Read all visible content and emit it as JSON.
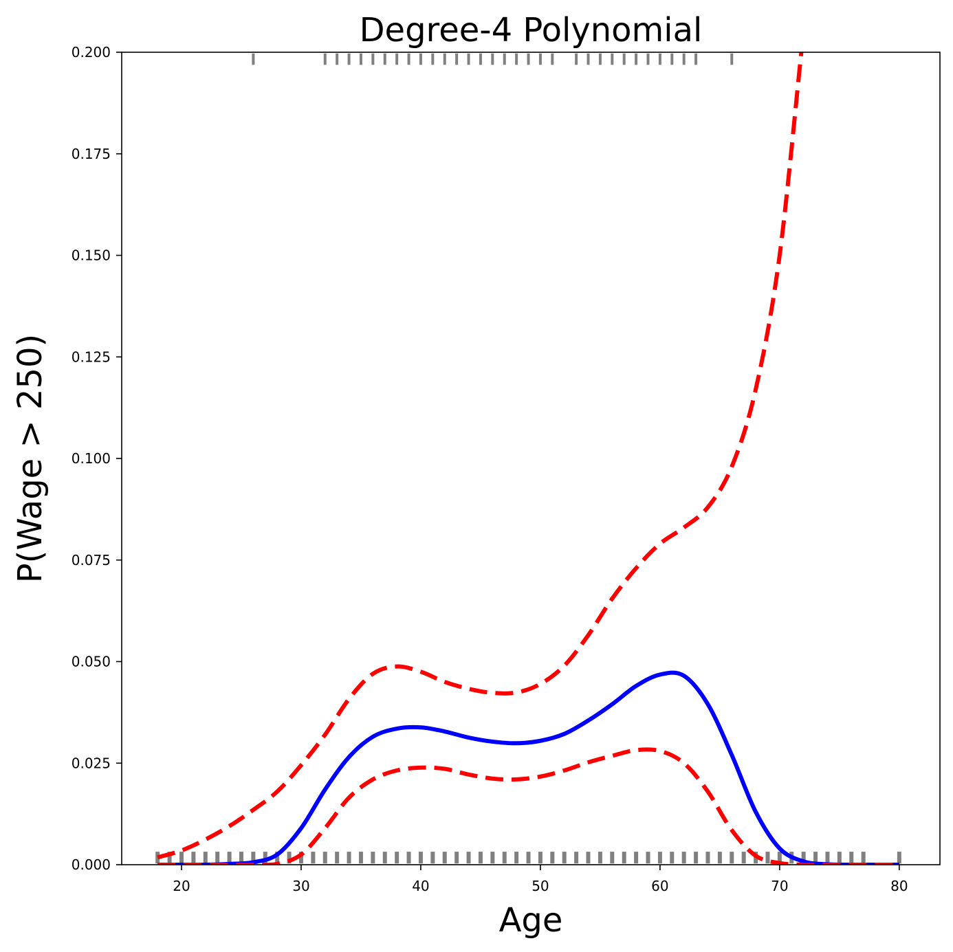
{
  "chart_data": {
    "type": "line",
    "title": "Degree-4 Polynomial",
    "xlabel": "Age",
    "ylabel": "P(Wage > 250)",
    "xlim": [
      15,
      83.4
    ],
    "ylim": [
      0,
      0.2
    ],
    "xticks": [
      "20",
      "30",
      "40",
      "50",
      "60",
      "70",
      "80"
    ],
    "yticks": [
      "0.000",
      "0.025",
      "0.050",
      "0.075",
      "0.100",
      "0.125",
      "0.150",
      "0.175",
      "0.200"
    ],
    "grid": false,
    "x": [
      18,
      20,
      22,
      24,
      26,
      28,
      30,
      32,
      34,
      36,
      38,
      40,
      42,
      44,
      46,
      48,
      50,
      52,
      54,
      56,
      58,
      60,
      62,
      64,
      66,
      68,
      70,
      72,
      74,
      76,
      78,
      80
    ],
    "series": [
      {
        "role": "fit",
        "color": "#0000ff",
        "style": "solid",
        "values": [
          0.0,
          0.0,
          0.0,
          0.0002,
          0.0006,
          0.0025,
          0.009,
          0.0185,
          0.0265,
          0.0315,
          0.0335,
          0.0338,
          0.0328,
          0.0313,
          0.0303,
          0.0299,
          0.0305,
          0.0322,
          0.0355,
          0.0395,
          0.044,
          0.0468,
          0.0465,
          0.0395,
          0.027,
          0.013,
          0.004,
          0.0008,
          0.0001,
          0.0,
          0.0,
          0.0
        ]
      },
      {
        "role": "upper-band",
        "color": "#ff0000",
        "style": "dashed",
        "values": [
          0.0018,
          0.0035,
          0.0062,
          0.0095,
          0.0135,
          0.018,
          0.0245,
          0.032,
          0.0408,
          0.047,
          0.0488,
          0.0475,
          0.045,
          0.0433,
          0.0423,
          0.0424,
          0.0445,
          0.049,
          0.0565,
          0.0655,
          0.073,
          0.079,
          0.083,
          0.088,
          0.098,
          0.117,
          0.15,
          0.205,
          0.2,
          0.2,
          0.2,
          0.2
        ]
      },
      {
        "role": "lower-band",
        "color": "#ff0000",
        "style": "dashed",
        "values": [
          0.0,
          0.0,
          0.0,
          0.0,
          0.0,
          0.0002,
          0.0025,
          0.009,
          0.0165,
          0.021,
          0.0232,
          0.0239,
          0.0236,
          0.0222,
          0.0212,
          0.021,
          0.0217,
          0.0232,
          0.0252,
          0.0268,
          0.0282,
          0.028,
          0.025,
          0.018,
          0.0085,
          0.0022,
          0.0004,
          0.0,
          0.0,
          0.0,
          0.0,
          0.0
        ]
      }
    ],
    "rug_top": [
      26,
      32,
      33,
      34,
      35,
      36,
      37,
      38,
      39,
      40,
      41,
      42,
      43,
      44,
      45,
      46,
      47,
      48,
      49,
      50,
      51,
      53,
      54,
      55,
      56,
      57,
      58,
      59,
      60,
      61,
      62,
      63,
      66
    ],
    "rug_bottom": [
      18,
      19,
      20,
      21,
      22,
      23,
      24,
      25,
      26,
      27,
      28,
      29,
      30,
      31,
      32,
      33,
      34,
      35,
      36,
      37,
      38,
      39,
      40,
      41,
      42,
      43,
      44,
      45,
      46,
      47,
      48,
      49,
      50,
      51,
      52,
      53,
      54,
      55,
      56,
      57,
      58,
      59,
      60,
      61,
      62,
      63,
      64,
      65,
      66,
      67,
      68,
      69,
      70,
      71,
      72,
      73,
      74,
      75,
      76,
      77,
      80
    ],
    "rug_color": "#808080"
  }
}
